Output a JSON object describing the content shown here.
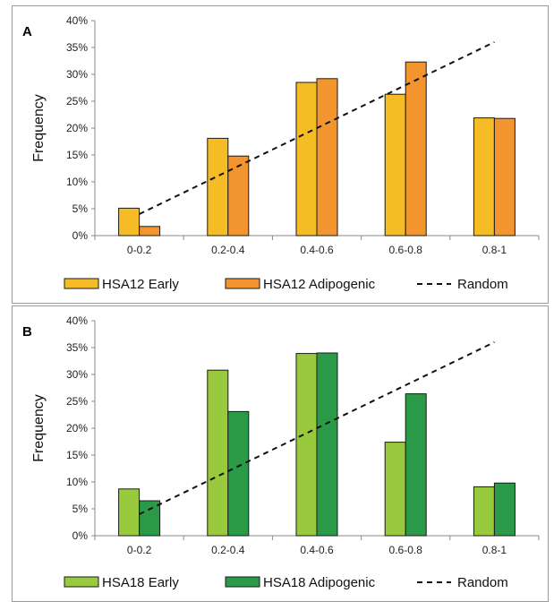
{
  "chart_data": [
    {
      "panel_label": "A",
      "type": "bar",
      "ylabel": "Frequency",
      "ylim": [
        0,
        40
      ],
      "y_ticks": [
        "0%",
        "5%",
        "10%",
        "15%",
        "20%",
        "25%",
        "30%",
        "35%",
        "40%"
      ],
      "categories": [
        "0-0.2",
        "0.2-0.4",
        "0.4-0.6",
        "0.6-0.8",
        "0.8-1"
      ],
      "series": [
        {
          "name": "HSA12 Early",
          "color": "#f6bc26",
          "values": [
            5.1,
            18.1,
            28.5,
            26.3,
            21.9
          ]
        },
        {
          "name": "HSA12 Adipogenic",
          "color": "#f3952e",
          "values": [
            1.7,
            14.8,
            29.2,
            32.3,
            21.8
          ]
        }
      ],
      "random_line": {
        "name": "Random",
        "from": [
          0,
          4
        ],
        "to": [
          4,
          36
        ]
      },
      "grid": false,
      "legend_position": "bottom"
    },
    {
      "panel_label": "B",
      "type": "bar",
      "ylabel": "Frequency",
      "ylim": [
        0,
        40
      ],
      "y_ticks": [
        "0%",
        "5%",
        "10%",
        "15%",
        "20%",
        "25%",
        "30%",
        "35%",
        "40%"
      ],
      "categories": [
        "0-0.2",
        "0.2-0.4",
        "0.4-0.6",
        "0.6-0.8",
        "0.8-1"
      ],
      "series": [
        {
          "name": "HSA18 Early",
          "color": "#99c93c",
          "values": [
            8.7,
            30.8,
            33.9,
            17.4,
            9.1
          ]
        },
        {
          "name": "HSA18 Adipogenic",
          "color": "#2a9a48",
          "values": [
            6.5,
            23.1,
            34.0,
            26.4,
            9.8
          ]
        }
      ],
      "random_line": {
        "name": "Random",
        "from": [
          0,
          4
        ],
        "to": [
          4,
          36
        ]
      },
      "grid": false,
      "legend_position": "bottom"
    }
  ]
}
